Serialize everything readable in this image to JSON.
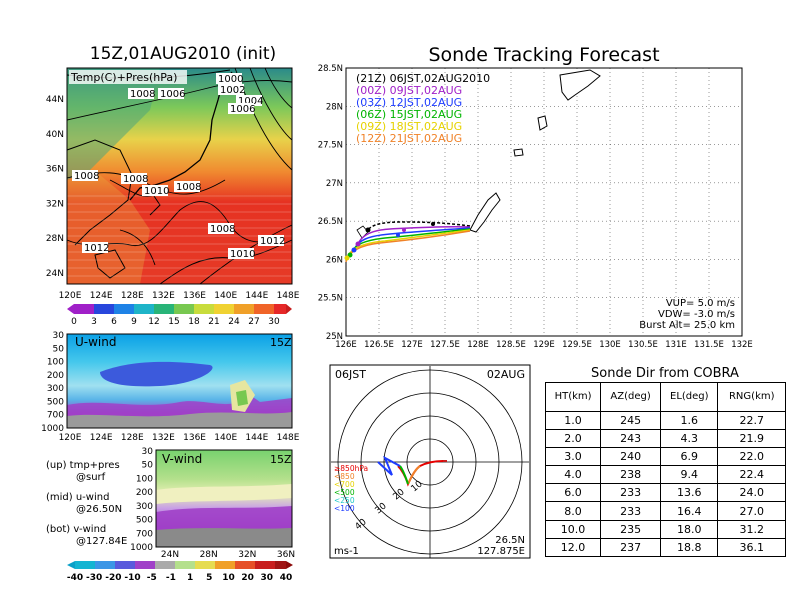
{
  "titles": {
    "left": "15Z,01AUG2010 (init)",
    "right": "Sonde Tracking Forecast",
    "table": "Sonde Dir from COBRA"
  },
  "surface_map": {
    "label": "Temp(C)+Pres(hPa)",
    "x_ticks": [
      "120E",
      "124E",
      "128E",
      "132E",
      "136E",
      "140E",
      "144E",
      "148E"
    ],
    "y_ticks": [
      "24N",
      "28N",
      "32N",
      "36N",
      "40N",
      "44N"
    ],
    "isobar_labels": [
      "1000",
      "1002",
      "1004",
      "1006",
      "1008",
      "1006",
      "1008",
      "1008",
      "1010",
      "1008",
      "1008",
      "1012",
      "1010",
      "1012"
    ],
    "colorbar_ticks": [
      "0",
      "3",
      "6",
      "9",
      "12",
      "15",
      "18",
      "21",
      "24",
      "27",
      "30"
    ]
  },
  "u_wind": {
    "label": "U-wind",
    "time": "15Z",
    "y_ticks": [
      "30",
      "50",
      "100",
      "200",
      "300",
      "500",
      "700",
      "1000"
    ],
    "x_ticks": [
      "120E",
      "124E",
      "128E",
      "132E",
      "136E",
      "140E",
      "144E",
      "148E"
    ]
  },
  "v_wind": {
    "label": "V-wind",
    "time": "15Z",
    "y_ticks": [
      "30",
      "50",
      "100",
      "200",
      "300",
      "500",
      "700",
      "1000"
    ],
    "x_ticks": [
      "24N",
      "28N",
      "32N",
      "36N"
    ]
  },
  "notes": {
    "up": "(up) tmp+pres",
    "up2": "@surf",
    "mid": "(mid) u-wind",
    "mid2": "@26.50N",
    "bot": "(bot) v-wind",
    "bot2": "@127.84E"
  },
  "wind_colorbar_ticks": [
    "-40",
    "-30",
    "-20",
    "-10",
    "-5",
    "-1",
    "1",
    "5",
    "10",
    "20",
    "30",
    "40"
  ],
  "track_map": {
    "x_ticks": [
      "126E",
      "126.5E",
      "127E",
      "127.5E",
      "128E",
      "128.5E",
      "129E",
      "129.5E",
      "130E",
      "130.5E",
      "131E",
      "131.5E",
      "132E"
    ],
    "y_ticks": [
      "25N",
      "25.5N",
      "26N",
      "26.5N",
      "27N",
      "27.5N",
      "28N",
      "28.5N"
    ],
    "legend": [
      {
        "text": "(21Z)  06JST,02AUG2010",
        "color": "#000000"
      },
      {
        "text": "(00Z)  09JST,02AUG",
        "color": "#a020c8"
      },
      {
        "text": "(03Z)  12JST,02AUG",
        "color": "#1e3cff"
      },
      {
        "text": "(06Z)  15JST,02AUG",
        "color": "#00b400"
      },
      {
        "text": "(09Z)  18JST,02AUG",
        "color": "#e6d200"
      },
      {
        "text": "(12Z)  21JST,02AUG",
        "color": "#f08228"
      }
    ],
    "params": {
      "vup": "VUP=  5.0  m/s",
      "vdw": "VDW= -3.0  m/s",
      "burst": "Burst Alt=  25.0  km"
    }
  },
  "polar": {
    "left_label": "06JST",
    "right_label": "02AUG",
    "pos1": "26.5N",
    "pos2": "127.875E",
    "unit": "ms-1",
    "legend": [
      {
        "text": "≥850hPa",
        "color": "#e60000"
      },
      {
        "text": "<850",
        "color": "#f08228"
      },
      {
        "text": "<700",
        "color": "#e6d200"
      },
      {
        "text": "<500",
        "color": "#00b400"
      },
      {
        "text": "<250",
        "color": "#1ec8c8"
      },
      {
        "text": "<100",
        "color": "#1e3cff"
      }
    ],
    "ring_labels": [
      "10",
      "20",
      "30",
      "40"
    ]
  },
  "chart_data": {
    "type": "table",
    "title": "Sonde Dir from COBRA",
    "columns": [
      "HT(km)",
      "AZ(deg)",
      "EL(deg)",
      "RNG(km)"
    ],
    "rows": [
      [
        "1.0",
        "245",
        "1.6",
        "22.7"
      ],
      [
        "2.0",
        "243",
        "4.3",
        "21.9"
      ],
      [
        "3.0",
        "240",
        "6.9",
        "22.0"
      ],
      [
        "4.0",
        "238",
        "9.4",
        "22.4"
      ],
      [
        "6.0",
        "233",
        "13.6",
        "24.0"
      ],
      [
        "8.0",
        "233",
        "16.4",
        "27.0"
      ],
      [
        "10.0",
        "235",
        "18.0",
        "31.2"
      ],
      [
        "12.0",
        "237",
        "18.8",
        "36.1"
      ]
    ]
  }
}
